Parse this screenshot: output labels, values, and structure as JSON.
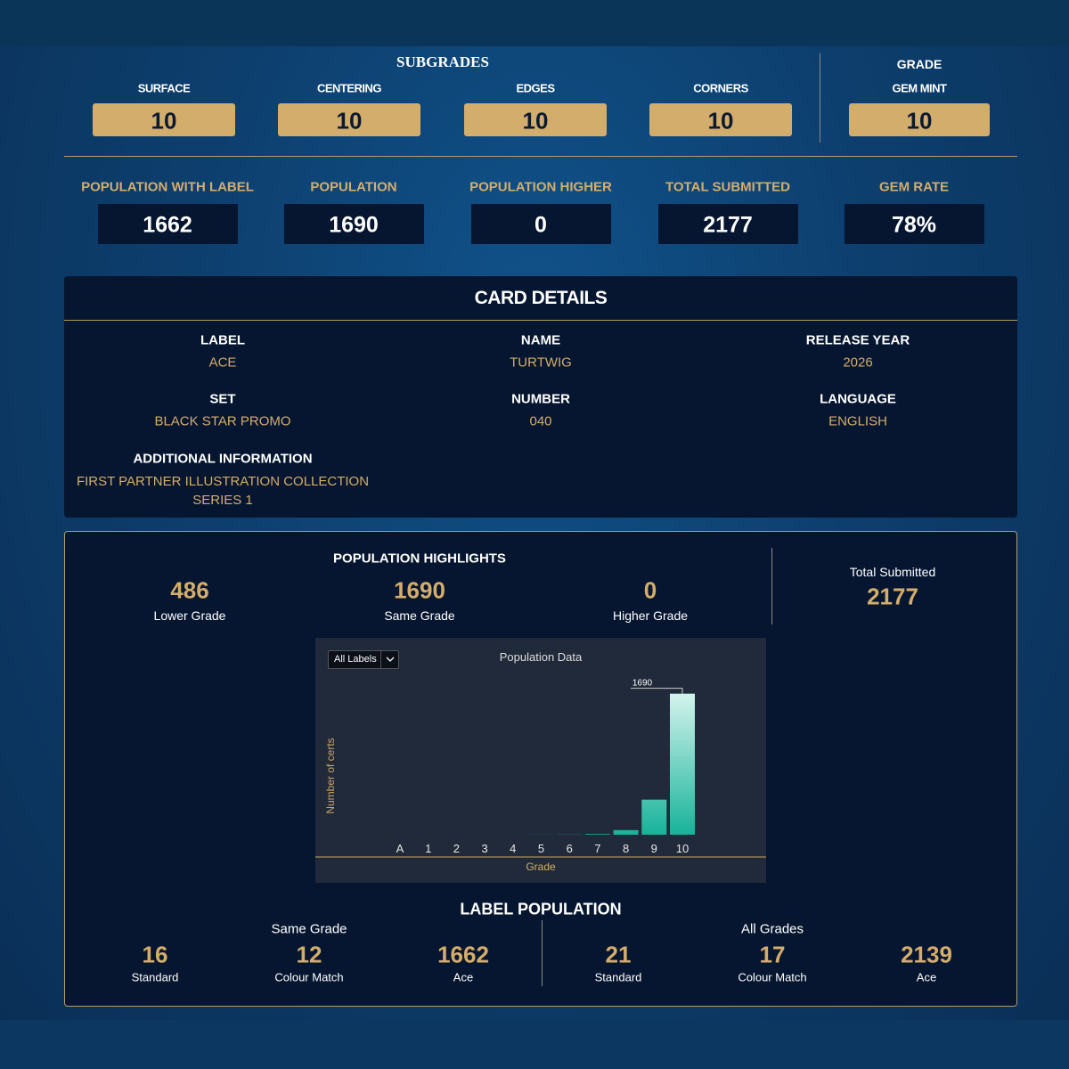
{
  "subgrades": {
    "title": "SUBGRADES",
    "items": [
      {
        "label": "SURFACE",
        "value": 10
      },
      {
        "label": "CENTERING",
        "value": 10
      },
      {
        "label": "EDGES",
        "value": 10
      },
      {
        "label": "CORNERS",
        "value": 10
      }
    ]
  },
  "grade": {
    "title": "GRADE",
    "label": "GEM MINT",
    "value": 10
  },
  "stats": [
    {
      "label": "POPULATION WITH LABEL",
      "value": 1662
    },
    {
      "label": "POPULATION",
      "value": 1690
    },
    {
      "label": "POPULATION HIGHER",
      "value": 0
    },
    {
      "label": "TOTAL SUBMITTED",
      "value": 2177
    },
    {
      "label": "GEM RATE",
      "value": "78%"
    }
  ],
  "card_details": {
    "title": "CARD DETAILS",
    "fields": [
      {
        "label": "LABEL",
        "value": "ACE"
      },
      {
        "label": "NAME",
        "value": "TURTWIG"
      },
      {
        "label": "RELEASE YEAR",
        "value": 2026
      },
      {
        "label": "SET",
        "value": "BLACK STAR PROMO"
      },
      {
        "label": "NUMBER",
        "value": "040"
      },
      {
        "label": "LANGUAGE",
        "value": "ENGLISH"
      }
    ],
    "additional": {
      "label": "ADDITIONAL INFORMATION",
      "value": "FIRST PARTNER ILLUSTRATION COLLECTION SERIES 1"
    }
  },
  "population_highlights": {
    "title": "POPULATION HIGHLIGHTS",
    "items": [
      {
        "value": 486,
        "label": "Lower Grade"
      },
      {
        "value": 1690,
        "label": "Same Grade"
      },
      {
        "value": 0,
        "label": "Higher Grade"
      }
    ],
    "total": {
      "label": "Total Submitted",
      "value": 2177
    }
  },
  "chart_data": {
    "type": "bar",
    "title": "Population Data",
    "filter": "All Labels",
    "x_label": "Grade",
    "y_label": "Number of certs",
    "categories": [
      "A",
      "1",
      "2",
      "3",
      "4",
      "5",
      "6",
      "7",
      "8",
      "9",
      "10"
    ],
    "values": [
      0,
      0,
      0,
      0,
      0,
      1,
      2,
      8,
      55,
      420,
      1690
    ],
    "color": "#17b39a",
    "ylim": [
      0,
      1900
    ]
  },
  "label_population": {
    "title": "LABEL POPULATION",
    "groups": [
      {
        "title": "Same Grade",
        "items": [
          {
            "value": 16,
            "label": "Standard"
          },
          {
            "value": 12,
            "label": "Colour Match"
          },
          {
            "value": 1662,
            "label": "Ace"
          }
        ]
      },
      {
        "title": "All Grades",
        "items": [
          {
            "value": 21,
            "label": "Standard"
          },
          {
            "value": 17,
            "label": "Colour Match"
          },
          {
            "value": 2139,
            "label": "Ace"
          }
        ]
      }
    ]
  }
}
